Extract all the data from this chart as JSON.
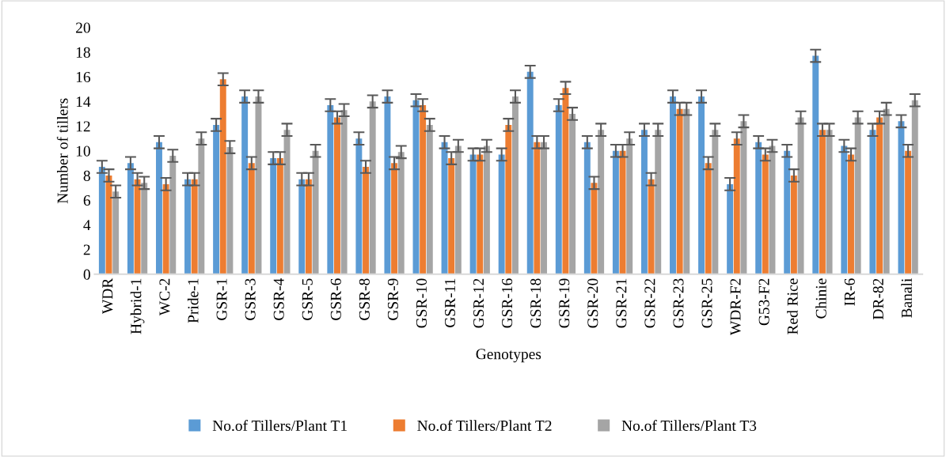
{
  "chart_data": {
    "type": "bar",
    "xlabel": "Genotypes",
    "ylabel": "Number of tillers",
    "categories": [
      "WDR",
      "Hybrid-1",
      "WC-2",
      "Pride-1",
      "GSR-1",
      "GSR-3",
      "GSR-4",
      "GSR-5",
      "GSR-6",
      "GSR-8",
      "GSR-9",
      "GSR-10",
      "GSR-11",
      "GSR-12",
      "GSR-16",
      "GSR-18",
      "GSR-19",
      "GSR-20",
      "GSR-21",
      "GSR-22",
      "GSR-23",
      "GSR-25",
      "WDR-F2",
      "G53-F2",
      "Red Rice",
      "Chinie",
      "IR-6",
      "DR-82",
      "Banali"
    ],
    "series": [
      {
        "name": "No.of Tillers/Plant T1",
        "color": "#5b9bd5",
        "values": [
          8.7,
          9.0,
          10.7,
          7.7,
          12.1,
          14.4,
          9.4,
          7.7,
          13.7,
          11.0,
          14.4,
          14.1,
          10.7,
          9.7,
          9.7,
          16.4,
          13.7,
          10.7,
          10.0,
          11.7,
          14.4,
          14.4,
          7.3,
          10.7,
          10.0,
          17.7,
          10.4,
          11.7,
          12.4
        ],
        "errors": [
          0.5,
          0.5,
          0.5,
          0.5,
          0.5,
          0.5,
          0.5,
          0.5,
          0.5,
          0.5,
          0.5,
          0.5,
          0.5,
          0.5,
          0.5,
          0.5,
          0.5,
          0.5,
          0.5,
          0.5,
          0.5,
          0.5,
          0.5,
          0.5,
          0.5,
          0.5,
          0.5,
          0.5,
          0.5
        ]
      },
      {
        "name": "No.of Tillers/Plant T2",
        "color": "#ed7d31",
        "values": [
          8.0,
          7.7,
          7.3,
          7.7,
          15.8,
          9.0,
          9.4,
          7.7,
          12.7,
          8.7,
          9.0,
          13.7,
          9.4,
          9.7,
          12.1,
          10.7,
          15.1,
          7.4,
          10.0,
          7.7,
          13.4,
          9.0,
          11.0,
          9.7,
          8.0,
          11.7,
          9.7,
          12.7,
          10.0
        ],
        "errors": [
          0.5,
          0.5,
          0.5,
          0.5,
          0.5,
          0.5,
          0.5,
          0.5,
          0.5,
          0.5,
          0.5,
          0.5,
          0.5,
          0.5,
          0.5,
          0.5,
          0.5,
          0.5,
          0.5,
          0.5,
          0.5,
          0.5,
          0.5,
          0.5,
          0.5,
          0.5,
          0.5,
          0.5,
          0.5
        ]
      },
      {
        "name": "No.of Tillers/Plant T3",
        "color": "#a5a5a5",
        "values": [
          6.7,
          7.4,
          9.6,
          11.0,
          10.3,
          14.4,
          11.7,
          10.0,
          13.3,
          14.0,
          9.9,
          12.1,
          10.4,
          10.4,
          14.4,
          10.7,
          13.0,
          11.7,
          11.0,
          11.7,
          13.4,
          11.7,
          12.4,
          10.4,
          12.7,
          11.7,
          12.7,
          13.4,
          14.1
        ],
        "errors": [
          0.5,
          0.5,
          0.5,
          0.5,
          0.5,
          0.5,
          0.5,
          0.5,
          0.5,
          0.5,
          0.5,
          0.5,
          0.5,
          0.5,
          0.5,
          0.5,
          0.5,
          0.5,
          0.5,
          0.5,
          0.5,
          0.5,
          0.5,
          0.5,
          0.5,
          0.5,
          0.5,
          0.5,
          0.5
        ]
      }
    ],
    "ylim": [
      0,
      20
    ],
    "yticks": [
      0,
      2,
      4,
      6,
      8,
      10,
      12,
      14,
      16,
      18,
      20
    ],
    "grid": false,
    "legend": "bottom"
  }
}
